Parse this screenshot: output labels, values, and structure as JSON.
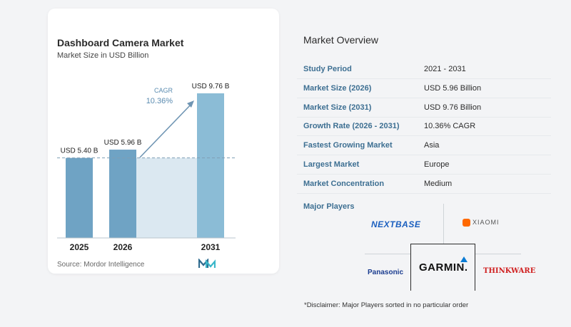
{
  "chart_data": {
    "type": "bar",
    "title": "Dashboard Camera Market",
    "subtitle": "Market Size in USD Billion",
    "categories": [
      "2025",
      "2026",
      "2031"
    ],
    "values": [
      5.4,
      5.96,
      9.76
    ],
    "value_labels": [
      "USD 5.40 B",
      "USD 5.96 B",
      "USD 9.76 B"
    ],
    "cagr_label": "CAGR",
    "cagr_value": "10.36%",
    "bar_color": "#6fa3c4",
    "bar_color_light": "#8bbcd6",
    "shade_color": "#dbe8f1",
    "arrow_color": "#6f95b3"
  },
  "source": "Source:  Mordor Intelligence",
  "overview": {
    "title": "Market Overview",
    "rows": [
      {
        "label": "Study Period",
        "value": "2021 - 2031"
      },
      {
        "label": "Market Size (2026)",
        "value": "USD 5.96 Billion"
      },
      {
        "label": "Market Size (2031)",
        "value": "USD 9.76 Billion"
      },
      {
        "label": "Growth Rate (2026 - 2031)",
        "value": "10.36% CAGR"
      },
      {
        "label": "Fastest Growing Market",
        "value": "Asia"
      },
      {
        "label": "Largest Market",
        "value": "Europe"
      },
      {
        "label": "Market Concentration",
        "value": "Medium"
      }
    ]
  },
  "players": {
    "title": "Major Players",
    "logos": [
      "NEXTBASE",
      "XIAOMI",
      "Panasonic",
      "GARMIN.",
      "THINKWARE"
    ]
  },
  "disclaimer": "*Disclaimer: Major Players sorted in no particular order"
}
